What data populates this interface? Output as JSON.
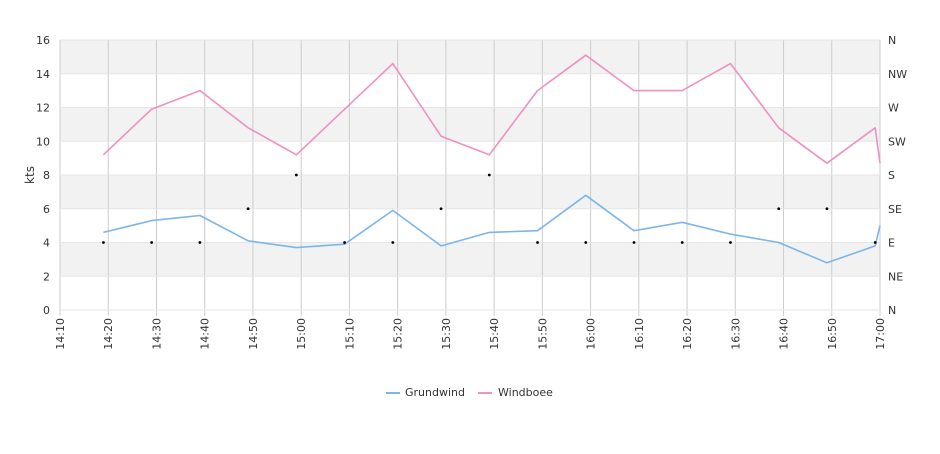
{
  "chart_data": {
    "type": "line",
    "ylabel": "kts",
    "ylim": [
      0,
      16
    ],
    "y_ticks": [
      "0",
      "2",
      "4",
      "6",
      "8",
      "10",
      "12",
      "14",
      "16"
    ],
    "right_axis_ticks": [
      "N",
      "NE",
      "E",
      "SE",
      "S",
      "SW",
      "W",
      "NW",
      "N"
    ],
    "x_ticks": [
      "14:10",
      "14:20",
      "14:30",
      "14:40",
      "14:50",
      "15:00",
      "15:10",
      "15:20",
      "15:30",
      "15:40",
      "15:50",
      "16:00",
      "16:10",
      "16:20",
      "16:30",
      "16:40",
      "16:50",
      "17:00"
    ],
    "grid": true,
    "legend_position": "bottom-center",
    "series": [
      {
        "name": "Grundwind",
        "color": "#7cb5ec",
        "points": [
          [
            "14:19",
            4.6
          ],
          [
            "14:29",
            5.3
          ],
          [
            "14:39",
            5.6
          ],
          [
            "14:49",
            4.1
          ],
          [
            "14:59",
            3.7
          ],
          [
            "15:09",
            3.9
          ],
          [
            "15:19",
            5.9
          ],
          [
            "15:29",
            3.8
          ],
          [
            "15:39",
            4.6
          ],
          [
            "15:49",
            4.7
          ],
          [
            "15:59",
            6.8
          ],
          [
            "16:09",
            4.7
          ],
          [
            "16:19",
            5.2
          ],
          [
            "16:29",
            4.5
          ],
          [
            "16:39",
            4.0
          ],
          [
            "16:49",
            2.8
          ],
          [
            "16:59",
            3.8
          ],
          [
            "17:00",
            5.0
          ]
        ]
      },
      {
        "name": "Windboee",
        "color": "#f090c0",
        "points": [
          [
            "14:19",
            9.2
          ],
          [
            "14:29",
            11.9
          ],
          [
            "14:39",
            13.0
          ],
          [
            "14:49",
            10.8
          ],
          [
            "14:59",
            9.2
          ],
          [
            "15:09",
            11.9
          ],
          [
            "15:19",
            14.6
          ],
          [
            "15:29",
            10.3
          ],
          [
            "15:39",
            9.2
          ],
          [
            "15:49",
            13.0
          ],
          [
            "15:59",
            15.1
          ],
          [
            "16:09",
            13.0
          ],
          [
            "16:19",
            13.0
          ],
          [
            "16:29",
            14.6
          ],
          [
            "16:39",
            10.8
          ],
          [
            "16:49",
            8.7
          ],
          [
            "16:59",
            10.8
          ],
          [
            "17:00",
            8.7
          ]
        ]
      }
    ],
    "direction_markers": [
      [
        "14:19",
        "E"
      ],
      [
        "14:29",
        "E"
      ],
      [
        "14:39",
        "E"
      ],
      [
        "14:49",
        "SE"
      ],
      [
        "14:59",
        "S"
      ],
      [
        "15:09",
        "E"
      ],
      [
        "15:19",
        "E"
      ],
      [
        "15:29",
        "SE"
      ],
      [
        "15:39",
        "S"
      ],
      [
        "15:49",
        "E"
      ],
      [
        "15:59",
        "E"
      ],
      [
        "16:09",
        "E"
      ],
      [
        "16:19",
        "E"
      ],
      [
        "16:29",
        "E"
      ],
      [
        "16:39",
        "SE"
      ],
      [
        "16:49",
        "SE"
      ],
      [
        "16:59",
        "E"
      ]
    ]
  }
}
